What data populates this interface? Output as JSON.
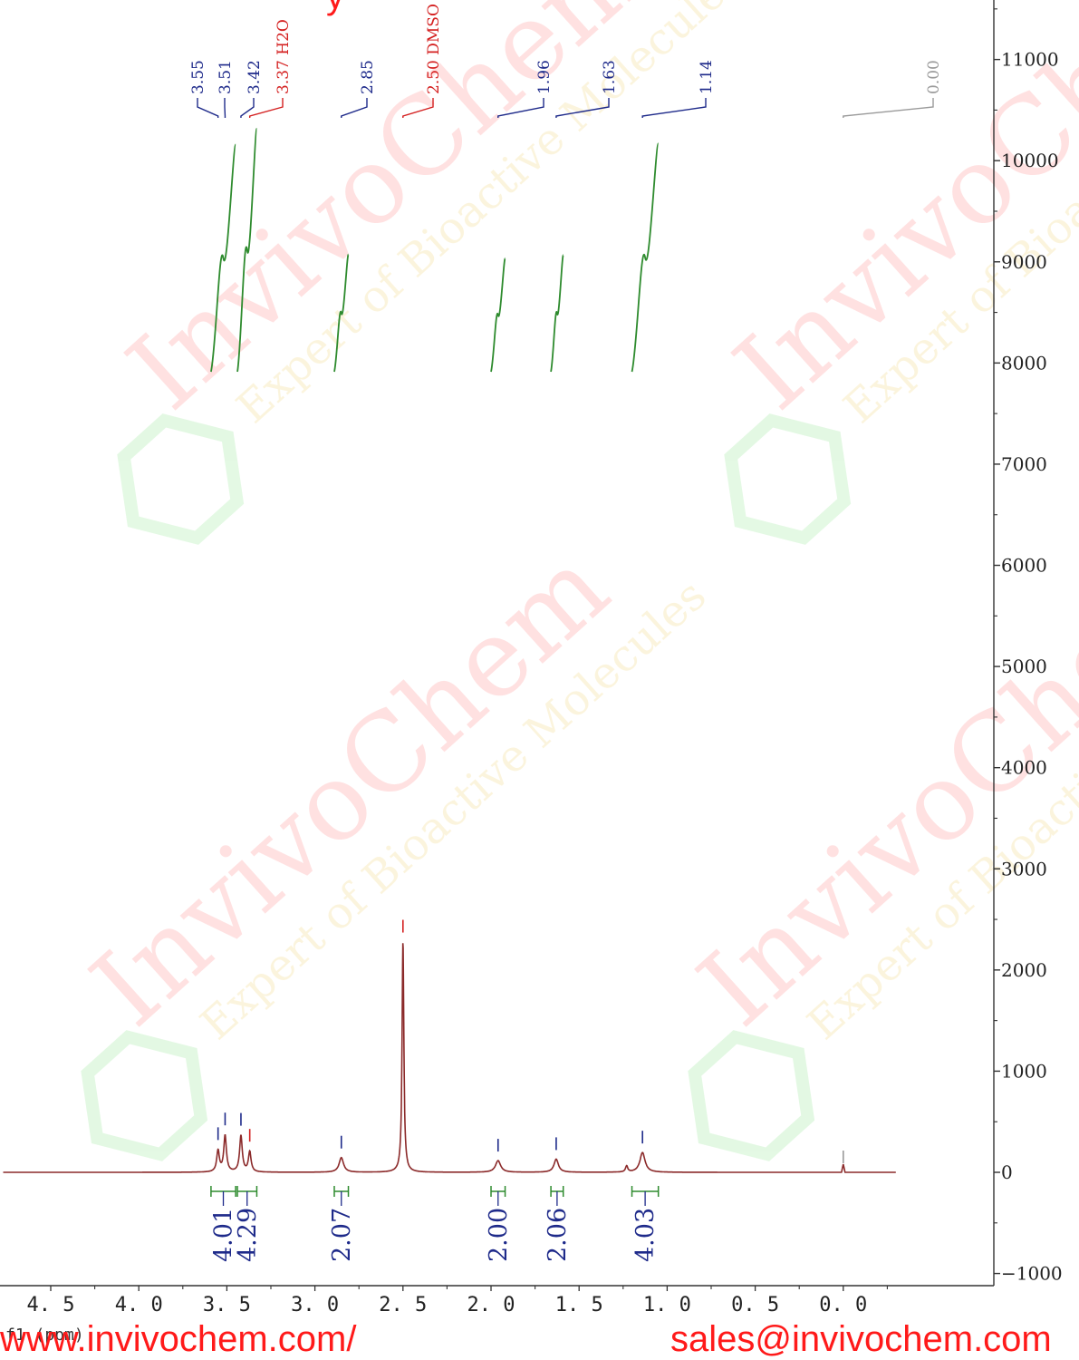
{
  "chart_data": {
    "type": "line",
    "title": "",
    "xlabel": "f1 (ppm)",
    "ylabel": "",
    "x_range": [
      4.77,
      -0.5
    ],
    "ylim": [
      -1050,
      12000
    ],
    "x_ticks": [
      {
        "value": 4.5,
        "label": "4. 5"
      },
      {
        "value": 4.0,
        "label": "4. 0"
      },
      {
        "value": 3.5,
        "label": "3. 5"
      },
      {
        "value": 3.0,
        "label": "3. 0"
      },
      {
        "value": 2.5,
        "label": "2. 5"
      },
      {
        "value": 2.0,
        "label": "2. 0"
      },
      {
        "value": 1.5,
        "label": "1. 5"
      },
      {
        "value": 1.0,
        "label": "1. 0"
      },
      {
        "value": 0.5,
        "label": "0. 5"
      },
      {
        "value": 0.0,
        "label": "0. 0"
      }
    ],
    "y_ticks": [
      {
        "value": 11000,
        "label": "11000"
      },
      {
        "value": 10000,
        "label": "10000"
      },
      {
        "value": 9000,
        "label": "9000"
      },
      {
        "value": 8000,
        "label": "8000"
      },
      {
        "value": 7000,
        "label": "7000"
      },
      {
        "value": 6000,
        "label": "6000"
      },
      {
        "value": 5000,
        "label": "5000"
      },
      {
        "value": 4000,
        "label": "4000"
      },
      {
        "value": 3000,
        "label": "3000"
      },
      {
        "value": 2000,
        "label": "2000"
      },
      {
        "value": 1000,
        "label": "1000"
      },
      {
        "value": 0,
        "label": "0"
      },
      {
        "value": -1000,
        "label": "−1000"
      }
    ],
    "peaks": [
      {
        "ppm": 3.55,
        "label": "3.55",
        "height": 210,
        "width": 0.018,
        "kind": "sample"
      },
      {
        "ppm": 3.51,
        "label": "3.51",
        "height": 360,
        "width": 0.018,
        "kind": "sample"
      },
      {
        "ppm": 3.42,
        "label": "3.42",
        "height": 360,
        "width": 0.018,
        "kind": "sample"
      },
      {
        "ppm": 3.37,
        "label": "3.37 H2O",
        "height": 200,
        "width": 0.018,
        "kind": "solvent"
      },
      {
        "ppm": 2.85,
        "label": "2.85",
        "height": 145,
        "width": 0.03,
        "kind": "sample"
      },
      {
        "ppm": 2.5,
        "label": "2.50 DMSO",
        "height": 2280,
        "width": 0.012,
        "kind": "solvent"
      },
      {
        "ppm": 1.96,
        "label": "1.96",
        "height": 115,
        "width": 0.035,
        "kind": "sample"
      },
      {
        "ppm": 1.63,
        "label": "1.63",
        "height": 130,
        "width": 0.03,
        "kind": "sample"
      },
      {
        "ppm": 1.23,
        "label": "",
        "height": 60,
        "width": 0.015,
        "kind": "sample"
      },
      {
        "ppm": 1.14,
        "label": "1.14",
        "height": 195,
        "width": 0.035,
        "kind": "sample"
      },
      {
        "ppm": 0.0,
        "label": "0.00",
        "height": 0,
        "width": 0.01,
        "kind": "reference"
      }
    ],
    "integrals": [
      {
        "label": "4.01",
        "from": 3.59,
        "to": 3.45
      },
      {
        "label": "4.29",
        "from": 3.44,
        "to": 3.33
      },
      {
        "label": "2.07",
        "from": 2.89,
        "to": 2.81
      },
      {
        "label": "2.00",
        "from": 2.0,
        "to": 1.92
      },
      {
        "label": "2.06",
        "from": 1.66,
        "to": 1.59
      },
      {
        "label": "4.03",
        "from": 1.2,
        "to": 1.05
      }
    ],
    "colors": {
      "spectrum": "#8b2a2a",
      "sample_label": "#1e2a8a",
      "solvent_label": "#d42020",
      "reference_label": "#9a9a9a",
      "integral_curve": "#2e8b2e"
    }
  },
  "footer": {
    "url": "www.invivochem.com/",
    "email": "sales@invivochem.com"
  },
  "top_fragment": "y",
  "watermark": {
    "brand": "InvivoChem",
    "tagline": "Expert of Bioactive Molecules"
  }
}
